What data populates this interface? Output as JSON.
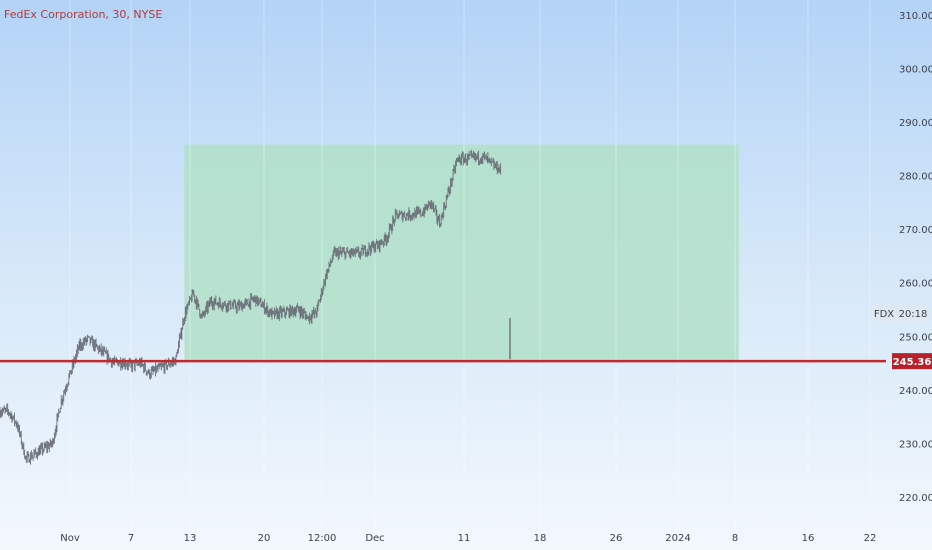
{
  "header": {
    "title": "FedEx Corporation, 30, NYSE"
  },
  "colors": {
    "candle": "#6b7079",
    "zone_fill": "#b2e0c8",
    "support_line": "#c2282d",
    "price_tag_bg": "#b8202a",
    "current_tag_bg": "#dfe8f1"
  },
  "chart_data": {
    "type": "candlestick",
    "ylim": [
      214.2,
      312.8
    ],
    "x_tick_labels": [
      "Nov",
      "7",
      "13",
      "20",
      "12:00",
      "Dec",
      "11",
      "18",
      "26",
      "2024",
      "8",
      "16",
      "22"
    ],
    "y_tick_labels": [
      "310.00",
      "300.00",
      "290.00",
      "280.00",
      "270.00",
      "260.00",
      "250.00",
      "240.00",
      "230.00",
      "220.00"
    ],
    "y_tick_values": [
      310,
      300,
      290,
      280,
      270,
      260,
      250,
      240,
      230,
      220
    ],
    "horizontal_line": {
      "value": 245.36,
      "label": "245.36"
    },
    "highlight_zone": {
      "bottom": 245.36,
      "top": 285.8,
      "start": "Nov 14",
      "end": "Jan 16"
    },
    "current_marker": {
      "symbol": "FDX",
      "label": "20:18"
    },
    "anchors": [
      {
        "date": "Oct 25",
        "price": 236.0
      },
      {
        "date": "Oct 26",
        "price": 233.5
      },
      {
        "date": "Oct 27",
        "price": 227.0
      },
      {
        "date": "Oct 30",
        "price": 230.0
      },
      {
        "date": "Oct 31",
        "price": 238.0
      },
      {
        "date": "Nov 1",
        "price": 243.0
      },
      {
        "date": "Nov 2",
        "price": 248.0
      },
      {
        "date": "Nov 3",
        "price": 249.5
      },
      {
        "date": "Nov 6",
        "price": 245.0
      },
      {
        "date": "Nov 7",
        "price": 245.2
      },
      {
        "date": "Nov 8",
        "price": 244.5
      },
      {
        "date": "Nov 9",
        "price": 245.0
      },
      {
        "date": "Nov 10",
        "price": 243.0
      },
      {
        "date": "Nov 13",
        "price": 245.5
      },
      {
        "date": "Nov 14",
        "price": 254.0
      },
      {
        "date": "Nov 15",
        "price": 258.0
      },
      {
        "date": "Nov 16",
        "price": 253.5
      },
      {
        "date": "Nov 17",
        "price": 256.5
      },
      {
        "date": "Nov 20",
        "price": 255.5
      },
      {
        "date": "Nov 21",
        "price": 256.0
      },
      {
        "date": "Nov 22",
        "price": 257.0
      },
      {
        "date": "Nov 24",
        "price": 254.0
      },
      {
        "date": "Nov 27",
        "price": 255.0
      },
      {
        "date": "Nov 28",
        "price": 253.5
      },
      {
        "date": "Nov 29",
        "price": 254.5
      },
      {
        "date": "Nov 30",
        "price": 261.0
      },
      {
        "date": "Dec 1",
        "price": 265.5
      },
      {
        "date": "Dec 4",
        "price": 265.5
      },
      {
        "date": "Dec 5",
        "price": 266.5
      },
      {
        "date": "Dec 6",
        "price": 267.0
      },
      {
        "date": "Dec 7",
        "price": 268.5
      },
      {
        "date": "Dec 8",
        "price": 272.5
      },
      {
        "date": "Dec 11",
        "price": 273.0
      },
      {
        "date": "Dec 12",
        "price": 275.0
      },
      {
        "date": "Dec 13",
        "price": 271.0
      },
      {
        "date": "Dec 14",
        "price": 277.0
      },
      {
        "date": "Dec 15",
        "price": 283.0
      },
      {
        "date": "Dec 18",
        "price": 283.5
      },
      {
        "date": "Dec 19",
        "price": 282.0
      },
      {
        "date": "Dec 20",
        "price": 281.0
      },
      {
        "date": "Dec 21",
        "price": 245.7
      }
    ]
  }
}
